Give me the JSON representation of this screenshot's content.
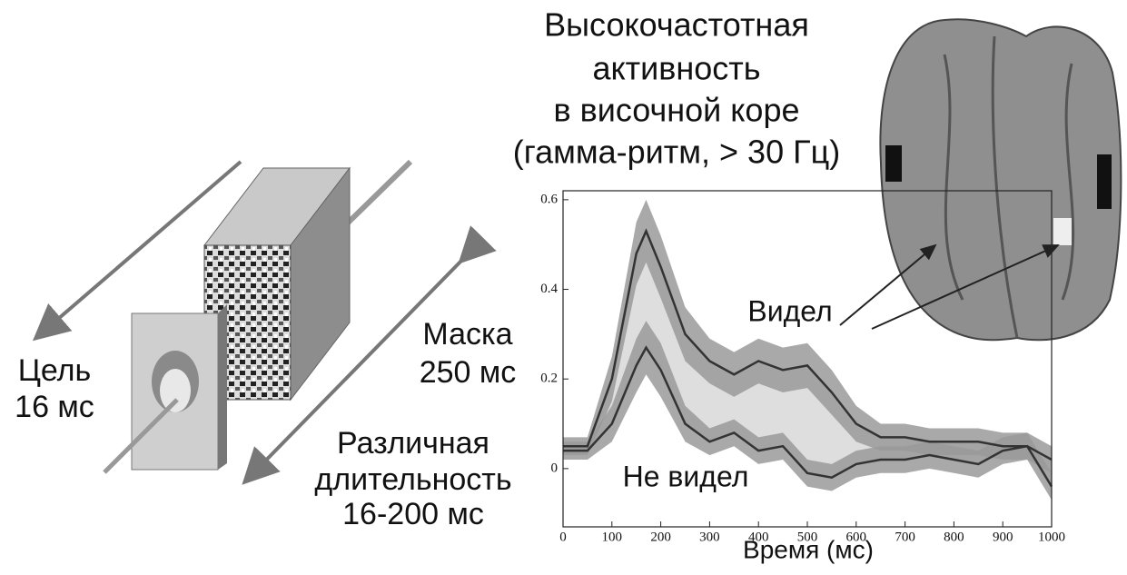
{
  "diagram": {
    "target": [
      "Цель",
      "16 мс"
    ],
    "mask": [
      "Маска",
      "250 мс"
    ],
    "duration": [
      "Различная",
      "длительность",
      "16-200 мс"
    ]
  },
  "chart_data": {
    "type": "line",
    "title": [
      "Высокочастотная",
      "активность",
      "в височной коре",
      "(гамма-ритм, > 30 Гц)"
    ],
    "xlabel": "Время (мс)",
    "x": [
      0,
      50,
      100,
      150,
      170,
      200,
      250,
      300,
      350,
      400,
      450,
      500,
      550,
      600,
      650,
      700,
      750,
      800,
      850,
      900,
      950,
      1000
    ],
    "series": [
      {
        "name": "Видел",
        "color": "#333333",
        "band_color": "#9a9a9a",
        "values": [
          0.05,
          0.05,
          0.2,
          0.48,
          0.53,
          0.45,
          0.3,
          0.24,
          0.21,
          0.24,
          0.22,
          0.23,
          0.17,
          0.1,
          0.07,
          0.07,
          0.06,
          0.06,
          0.06,
          0.05,
          0.05,
          0.02
        ],
        "error": [
          0.02,
          0.02,
          0.05,
          0.07,
          0.07,
          0.07,
          0.06,
          0.05,
          0.05,
          0.05,
          0.05,
          0.05,
          0.05,
          0.04,
          0.03,
          0.03,
          0.03,
          0.03,
          0.03,
          0.03,
          0.03,
          0.03
        ]
      },
      {
        "name": "Не видел",
        "color": "#333333",
        "band_color": "#9a9a9a",
        "values": [
          0.04,
          0.04,
          0.1,
          0.23,
          0.27,
          0.22,
          0.1,
          0.06,
          0.08,
          0.04,
          0.05,
          -0.01,
          -0.02,
          0.01,
          0.02,
          0.02,
          0.03,
          0.02,
          0.01,
          0.04,
          0.05,
          -0.04
        ],
        "error": [
          0.02,
          0.02,
          0.04,
          0.06,
          0.06,
          0.06,
          0.04,
          0.03,
          0.03,
          0.03,
          0.03,
          0.03,
          0.03,
          0.03,
          0.03,
          0.03,
          0.03,
          0.03,
          0.03,
          0.03,
          0.03,
          0.03
        ]
      }
    ],
    "between_color": "#dedede",
    "xlim": [
      0,
      1000
    ],
    "xticks": [
      0,
      100,
      200,
      300,
      400,
      500,
      600,
      700,
      800,
      900,
      1000
    ],
    "ylim": [
      -0.13,
      0.62
    ],
    "yticks": [
      0,
      0.2,
      0.4,
      0.6
    ]
  }
}
